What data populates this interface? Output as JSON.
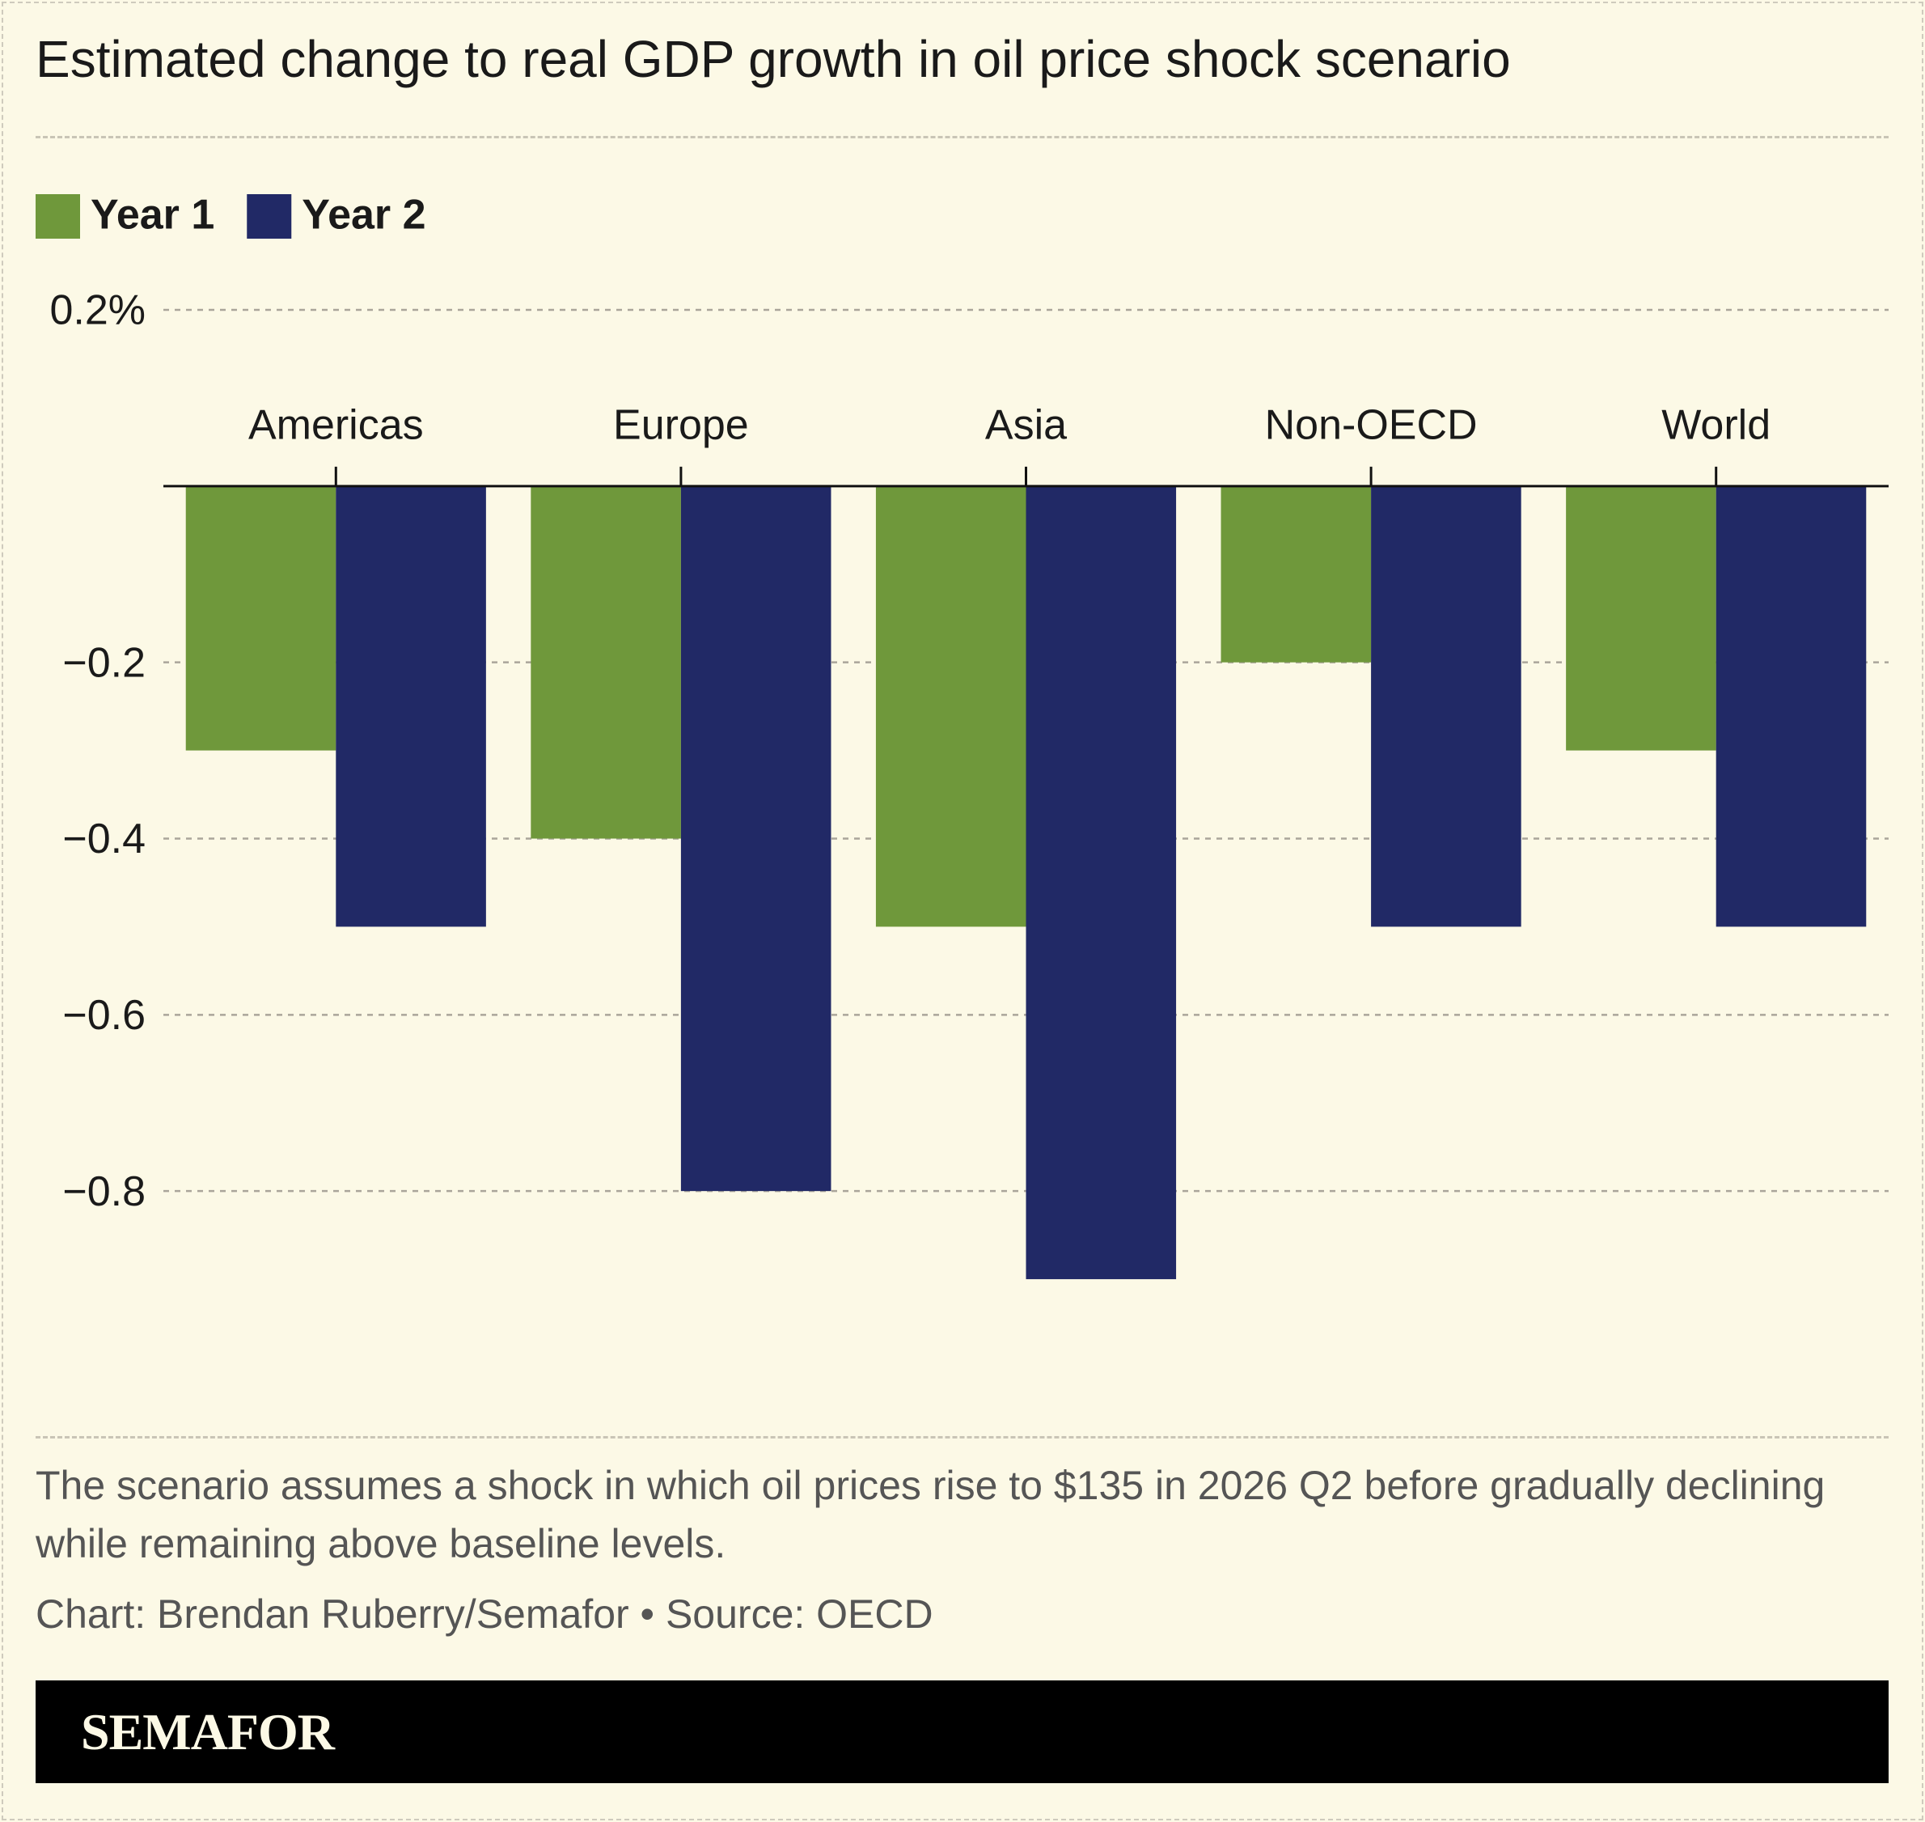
{
  "chart_data": {
    "type": "bar",
    "title": "Estimated change to real GDP growth in oil price shock scenario",
    "categories": [
      "Americas",
      "Europe",
      "Asia",
      "Non-OECD",
      "World"
    ],
    "series": [
      {
        "name": "Year 1",
        "color": "#6f983b",
        "values": [
          -0.3,
          -0.4,
          -0.5,
          -0.2,
          -0.3
        ]
      },
      {
        "name": "Year 2",
        "color": "#212966",
        "values": [
          -0.5,
          -0.8,
          -0.9,
          -0.5,
          -0.5
        ]
      }
    ],
    "ylim": [
      -1.0,
      0.2
    ],
    "yticks": [
      {
        "value": 0.2,
        "label": "0.2%"
      },
      {
        "value": -0.2,
        "label": "−0.2"
      },
      {
        "value": -0.4,
        "label": "−0.4"
      },
      {
        "value": -0.6,
        "label": "−0.6"
      },
      {
        "value": -0.8,
        "label": "−0.8"
      }
    ],
    "grid": true,
    "note": "The scenario assumes a shock in which oil prices rise to $135 in 2026 Q2 before gradually declining while remaining above baseline levels.",
    "credit": "Chart: Brendan Ruberry/Semafor • Source: OECD",
    "brand": "SEMAFOR"
  }
}
